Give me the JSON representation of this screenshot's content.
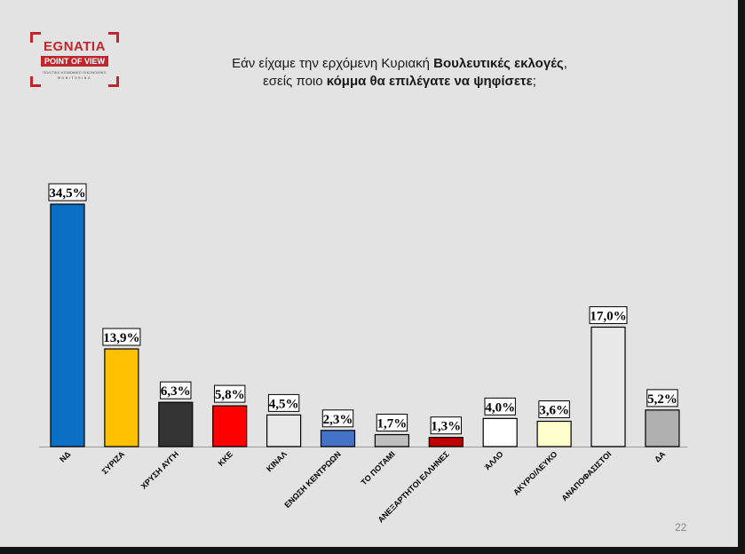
{
  "logo": {
    "name": "EGNATIA",
    "sub": "POINT OF VIEW",
    "line1": "ΠΟΛΙΤΙΚΟ ΚΟΙΝΩΝΙΚΟ ΟΙΚΟΝΟΜΙΚΟ",
    "line2": "MONITORING"
  },
  "title": {
    "line1_pre": "Εάν είχαμε την ερχόμενη Κυριακή ",
    "line1_bold": "Βουλευτικές εκλογές",
    "line1_post": ",",
    "line2_pre": "εσείς ποιο ",
    "line2_bold": "κόμμα θα επιλέγατε να ψηφίσετε",
    "line2_post": ";"
  },
  "chart_data": {
    "type": "bar",
    "title": "",
    "xlabel": "",
    "ylabel": "",
    "ylim": [
      0,
      34.5
    ],
    "grid": false,
    "categories": [
      "ΝΔ",
      "ΣΥΡΙΖΑ",
      "ΧΡΥΣΗ ΑΥΓΗ",
      "ΚΚΕ",
      "ΚΙΝΑΛ",
      "ΕΝΩΣΗ ΚΕΝΤΡΩΩΝ",
      "ΤΟ ΠΟΤΑΜΙ",
      "ΑΝΕΞΑΡΤΗΤΟΙ ΕΛΛΗΝΕΣ",
      "ΆΛΛΟ",
      "ΑΚΥΡΟ/ΛΕΥΚΟ",
      "ΑΝΑΠΟΦΑΣΙΣΤΟΙ",
      "ΔΑ"
    ],
    "values": [
      34.5,
      13.9,
      6.3,
      5.8,
      4.5,
      2.3,
      1.7,
      1.3,
      4.0,
      3.6,
      17.0,
      5.2
    ],
    "value_labels": [
      "34,5%",
      "13,9%",
      "6,3%",
      "5,8%",
      "4,5%",
      "2,3%",
      "1,7%",
      "1,3%",
      "4,0%",
      "3,6%",
      "17,0%",
      "5,2%"
    ],
    "colors": [
      "#0b6fc4",
      "#ffc000",
      "#333333",
      "#ff0000",
      "#e8e8e8",
      "#4472c4",
      "#bfbfbf",
      "#c00000",
      "#ffffff",
      "#ffffcc",
      "#e8e8e8",
      "#b0b0b0"
    ]
  },
  "page_number": "22"
}
